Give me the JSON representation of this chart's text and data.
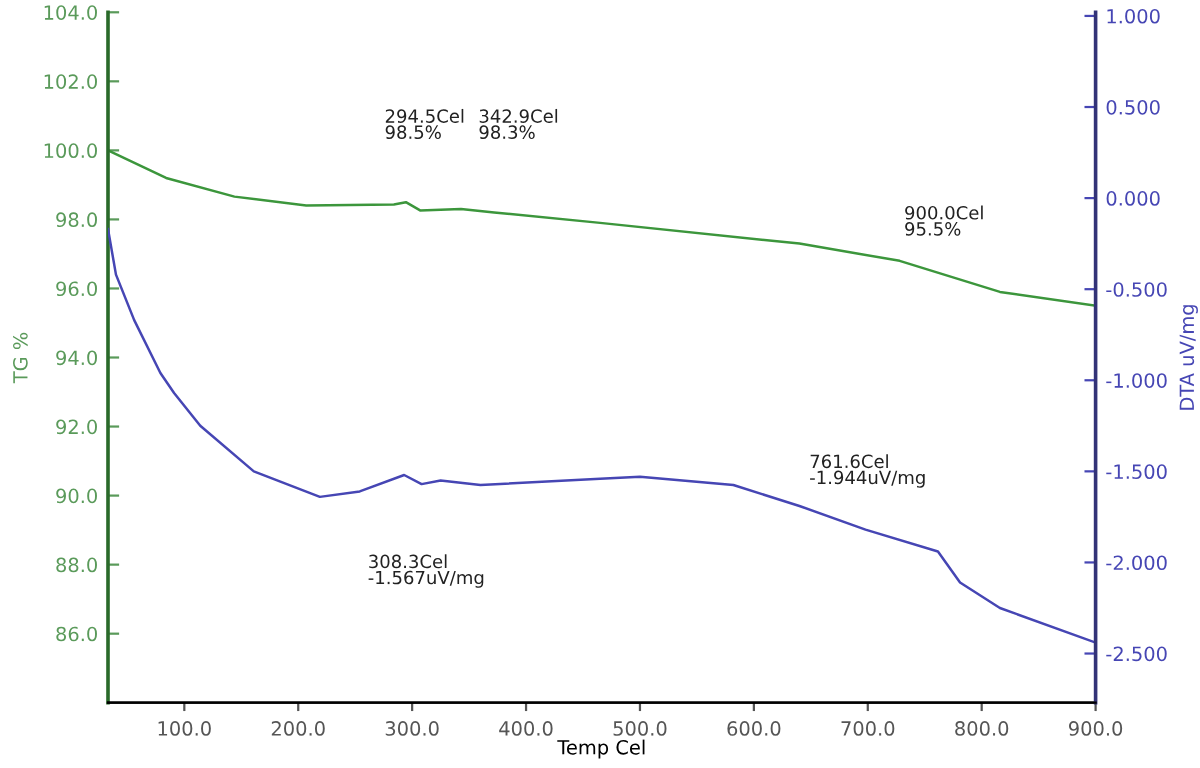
{
  "chart_data": {
    "type": "line",
    "xlabel": "Temp Cel",
    "ylabel": "TG %",
    "y2label": "DTA uV/mg",
    "xlim": [
      33,
      900
    ],
    "xticks": [
      {
        "value": 100,
        "label": "100.0"
      },
      {
        "value": 200,
        "label": "200.0"
      },
      {
        "value": 300,
        "label": "300.0"
      },
      {
        "value": 400,
        "label": "400.0"
      },
      {
        "value": 500,
        "label": "500.0"
      },
      {
        "value": 600,
        "label": "600.0"
      },
      {
        "value": 700,
        "label": "700.0"
      },
      {
        "value": 800,
        "label": "800.0"
      },
      {
        "value": 900,
        "label": "900.0"
      }
    ],
    "ylim": [
      84,
      104
    ],
    "yticks": [
      {
        "value": 86,
        "label": "86.0"
      },
      {
        "value": 88,
        "label": "88.0"
      },
      {
        "value": 90,
        "label": "90.0"
      },
      {
        "value": 92,
        "label": "92.0"
      },
      {
        "value": 94,
        "label": "94.0"
      },
      {
        "value": 96,
        "label": "96.0"
      },
      {
        "value": 98,
        "label": "98.0"
      },
      {
        "value": 100,
        "label": "100.0"
      },
      {
        "value": 102,
        "label": "102.0"
      },
      {
        "value": 104,
        "label": "104.0"
      }
    ],
    "y2lim": [
      -2.77,
      1.02
    ],
    "y2ticks": [
      {
        "value": -2.5,
        "label": "-2.500"
      },
      {
        "value": -2,
        "label": "-2.000"
      },
      {
        "value": -1.5,
        "label": "-1.500"
      },
      {
        "value": -1,
        "label": "-1.000"
      },
      {
        "value": -0.5,
        "label": "-0.500"
      },
      {
        "value": 0,
        "label": "0.000"
      },
      {
        "value": 0.5,
        "label": "0.500"
      },
      {
        "value": 1,
        "label": "1.000"
      }
    ],
    "grid": false,
    "legend": false,
    "series": [
      {
        "color": "#3c963c",
        "x": [
          33,
          84,
          144,
          207,
          284,
          294.5,
          307,
          342.9,
          372,
          465,
          640,
          728,
          816,
          900
        ],
        "values": [
          100.0,
          99.2,
          98.66,
          98.4,
          98.43,
          98.5,
          98.26,
          98.3,
          98.2,
          97.9,
          97.3,
          96.8,
          95.9,
          95.5
        ]
      },
      {
        "color": "#4646b4",
        "axis": "y2",
        "x": [
          33,
          40,
          56,
          79,
          91,
          114,
          161,
          219,
          254,
          293,
          308.3,
          325,
          360,
          465,
          500,
          582,
          640,
          698,
          761.6,
          781,
          816,
          900
        ],
        "values": [
          -0.17,
          -0.42,
          -0.67,
          -0.96,
          -1.07,
          -1.25,
          -1.5,
          -1.64,
          -1.61,
          -1.52,
          -1.57,
          -1.55,
          -1.575,
          -1.54,
          -1.53,
          -1.575,
          -1.69,
          -1.82,
          -1.94,
          -2.11,
          -2.25,
          -2.44
        ]
      }
    ],
    "annotations": [
      "294.5Cel\n98.5%",
      "342.9Cel\n98.3%",
      "900.0Cel\n95.5%",
      "308.3Cel\n-1.567uV/mg",
      "761.6Cel\n-1.944uV/mg"
    ]
  }
}
